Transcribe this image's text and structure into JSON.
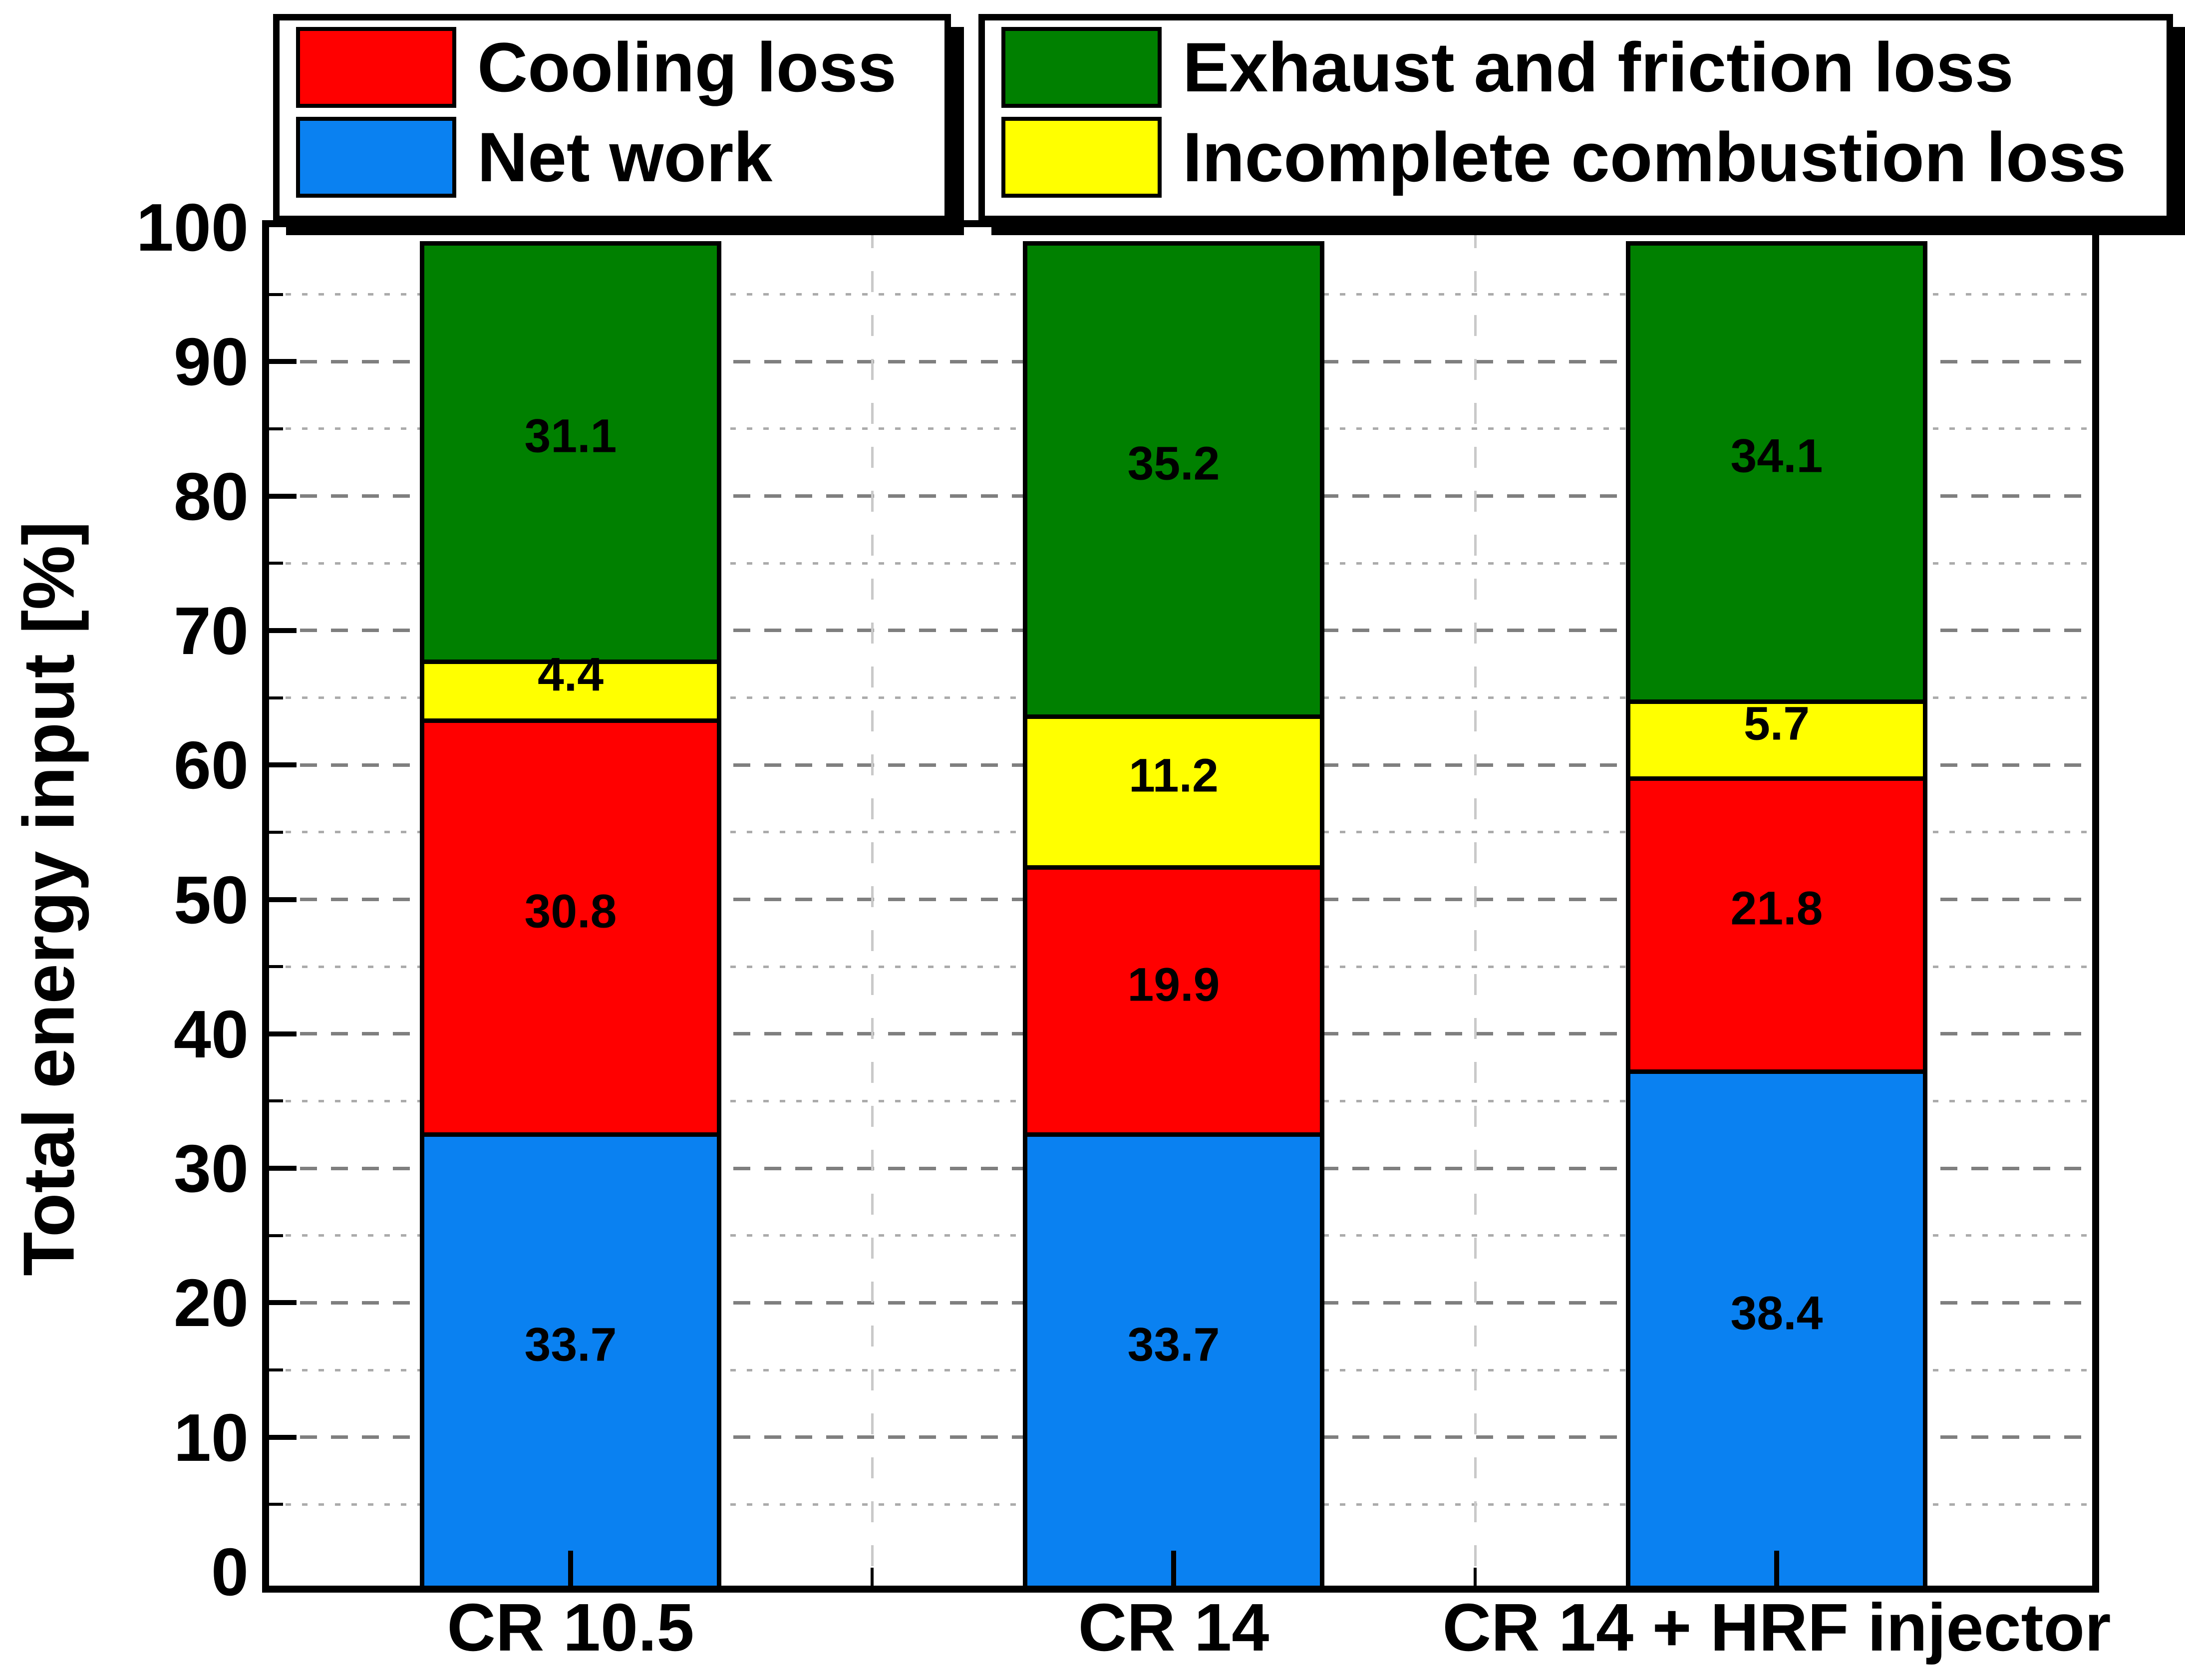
{
  "chart_data": {
    "type": "bar",
    "stacked": true,
    "title": "",
    "xlabel": "",
    "ylabel": "Total energy input [%]",
    "ylim": [
      0,
      100
    ],
    "ytick_step_major": 10,
    "ytick_step_minor": 5,
    "grid": "horizontal dotted minor every 5, dashed major every 10; light dashed vertical category separators",
    "legend_position": "top",
    "categories": [
      "CR 10.5",
      "CR 14",
      "CR 14 + HRF injector"
    ],
    "series": [
      {
        "name": "Net work",
        "color": "#0a81f1",
        "values": [
          33.7,
          33.7,
          38.4
        ]
      },
      {
        "name": "Cooling loss",
        "color": "#ff0000",
        "values": [
          30.8,
          19.9,
          21.8
        ]
      },
      {
        "name": "Incomplete combustion loss",
        "color": "#ffff00",
        "values": [
          4.4,
          11.2,
          5.7
        ]
      },
      {
        "name": "Exhaust and friction loss",
        "color": "#008000",
        "values": [
          31.1,
          35.2,
          34.1
        ]
      }
    ],
    "legend_boxes": [
      [
        "Cooling loss",
        "Net work"
      ],
      [
        "Exhaust and friction loss",
        "Incomplete combustion loss"
      ]
    ],
    "colors": {
      "frame": "#000000",
      "grid_major": "#7f7f7f",
      "grid_minor": "#ababab",
      "separator": "#c9c9c9"
    }
  }
}
